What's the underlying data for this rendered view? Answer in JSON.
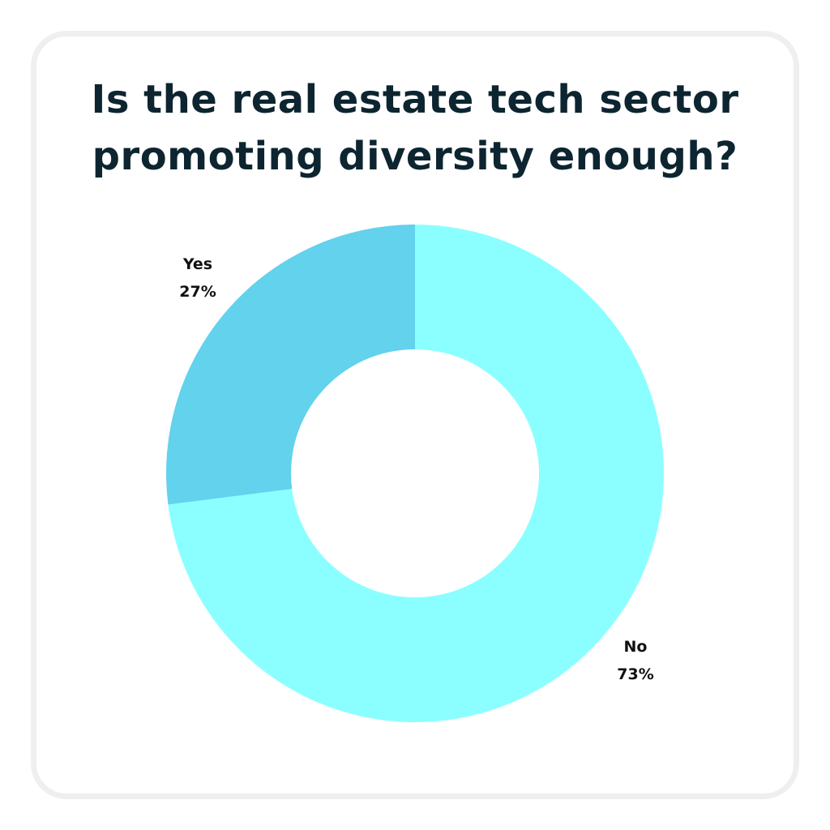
{
  "chart_data": {
    "type": "pie",
    "style": "donut",
    "title": "Is the real estate tech sector promoting diversity enough?",
    "title_lines": [
      "Is the real estate tech sector",
      "promoting diversity enough?"
    ],
    "categories": [
      "No",
      "Yes"
    ],
    "values": [
      73,
      27
    ],
    "value_labels": [
      "73%",
      "27%"
    ],
    "colors": [
      "#8bffff",
      "#62d2ed"
    ],
    "legend": "none"
  }
}
